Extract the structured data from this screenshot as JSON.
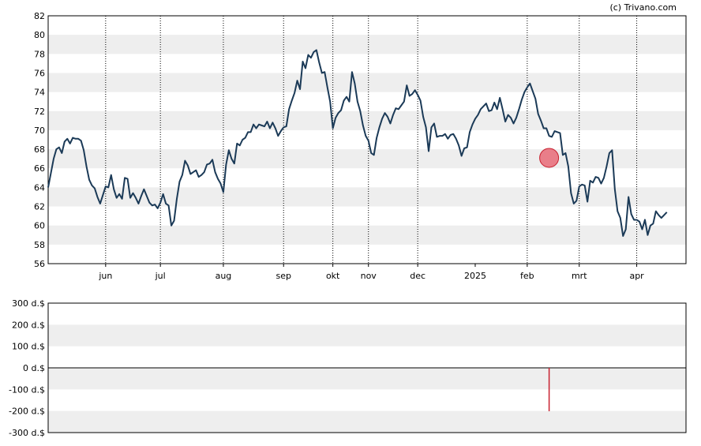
{
  "credit": "(c) Trivano.com",
  "colors": {
    "price_line": "#1b3a57",
    "band": "#eeeeee",
    "marker_fill": "#e8717d",
    "marker_stroke": "#c8202f",
    "volume_bar": "#c8202f"
  },
  "chart_data": [
    {
      "type": "line",
      "ylim": [
        56,
        82
      ],
      "y_ticks": [
        56,
        58,
        60,
        62,
        64,
        66,
        68,
        70,
        72,
        74,
        76,
        78,
        80,
        82
      ],
      "y_tick_labels": [
        "56",
        "58",
        "60",
        "62",
        "64",
        "66",
        "68",
        "70",
        "72",
        "74",
        "76",
        "78",
        "80",
        "82"
      ],
      "x_ticks": [
        {
          "label": "jun",
          "i": 21,
          "grid": true
        },
        {
          "label": "jul",
          "i": 41,
          "grid": true
        },
        {
          "label": "aug",
          "i": 64,
          "grid": true
        },
        {
          "label": "sep",
          "i": 86,
          "grid": true
        },
        {
          "label": "okt",
          "i": 104,
          "grid": true
        },
        {
          "label": "nov",
          "i": 117,
          "grid": true
        },
        {
          "label": "dec",
          "i": 135,
          "grid": true
        },
        {
          "label": "2025",
          "i": 156,
          "grid": false
        },
        {
          "label": "feb",
          "i": 175,
          "grid": true
        },
        {
          "label": "mrt",
          "i": 194,
          "grid": true
        },
        {
          "label": "apr",
          "i": 215,
          "grid": true
        }
      ],
      "x_count": 234,
      "grid": true,
      "values": [
        64.0,
        65.5,
        67.0,
        68.0,
        68.2,
        67.6,
        68.8,
        69.1,
        68.6,
        69.2,
        69.1,
        69.1,
        68.9,
        67.9,
        66.2,
        64.8,
        64.2,
        63.9,
        63.0,
        62.3,
        63.2,
        64.1,
        64.0,
        65.3,
        63.8,
        62.9,
        63.3,
        62.8,
        65.0,
        64.9,
        62.9,
        63.4,
        62.9,
        62.3,
        63.1,
        63.8,
        63.1,
        62.4,
        62.1,
        62.2,
        61.8,
        62.4,
        63.3,
        62.3,
        62.1,
        60.0,
        60.5,
        62.8,
        64.6,
        65.3,
        66.8,
        66.3,
        65.4,
        65.6,
        65.8,
        65.1,
        65.3,
        65.6,
        66.4,
        66.5,
        66.9,
        65.6,
        64.9,
        64.4,
        63.5,
        66.4,
        67.9,
        67.0,
        66.5,
        68.6,
        68.4,
        69.0,
        69.2,
        69.8,
        69.8,
        70.6,
        70.2,
        70.6,
        70.5,
        70.4,
        70.9,
        70.2,
        70.8,
        70.2,
        69.4,
        69.9,
        70.3,
        70.4,
        72.2,
        73.1,
        73.9,
        75.2,
        74.3,
        77.2,
        76.5,
        77.9,
        77.6,
        78.2,
        78.4,
        77.1,
        76.0,
        76.1,
        74.5,
        73.0,
        70.2,
        71.3,
        71.8,
        72.1,
        73.1,
        73.5,
        73.0,
        76.1,
        74.9,
        73.0,
        72.0,
        70.5,
        69.4,
        68.9,
        67.6,
        67.4,
        69.2,
        70.3,
        71.2,
        71.8,
        71.4,
        70.7,
        71.6,
        72.3,
        72.2,
        72.6,
        73.0,
        74.7,
        73.6,
        73.8,
        74.2,
        73.7,
        73.1,
        71.4,
        70.3,
        67.8,
        70.3,
        70.7,
        69.3,
        69.4,
        69.4,
        69.6,
        69.1,
        69.5,
        69.6,
        69.1,
        68.4,
        67.3,
        68.1,
        68.2,
        69.8,
        70.6,
        71.2,
        71.6,
        72.2,
        72.5,
        72.8,
        72.0,
        72.1,
        72.9,
        72.2,
        73.4,
        72.2,
        70.9,
        71.6,
        71.3,
        70.7,
        71.3,
        72.2,
        73.2,
        74.0,
        74.5,
        74.9,
        74.1,
        73.3,
        71.7,
        71.0,
        70.2,
        70.2,
        69.4,
        69.3,
        69.9,
        69.8,
        69.7,
        67.4,
        67.6,
        66.2,
        63.4,
        62.3,
        62.6,
        64.1,
        64.3,
        64.2,
        62.5,
        64.7,
        64.5,
        65.1,
        65.0,
        64.4,
        65.0,
        66.2,
        67.6,
        67.9,
        63.8,
        61.5,
        60.8,
        58.9,
        59.6,
        63.0,
        61.2,
        60.6,
        60.6,
        60.4,
        59.6,
        60.6,
        59.0,
        60.0,
        60.2,
        61.5,
        61.1,
        60.8,
        61.1,
        61.4
      ]
    },
    {
      "type": "bar",
      "ylim": [
        -300,
        300
      ],
      "y_ticks": [
        -300,
        -200,
        -100,
        0,
        100,
        200,
        300
      ],
      "y_tick_labels": [
        "-300 d.$",
        "-200 d.$",
        "-100 d.$",
        "0 d.$",
        "100 d.$",
        "200 d.$",
        "300 d.$"
      ],
      "x_count": 234,
      "bars": [
        {
          "i": 183,
          "value": -201
        }
      ]
    }
  ],
  "marker": {
    "i": 183,
    "value": 67.1
  }
}
